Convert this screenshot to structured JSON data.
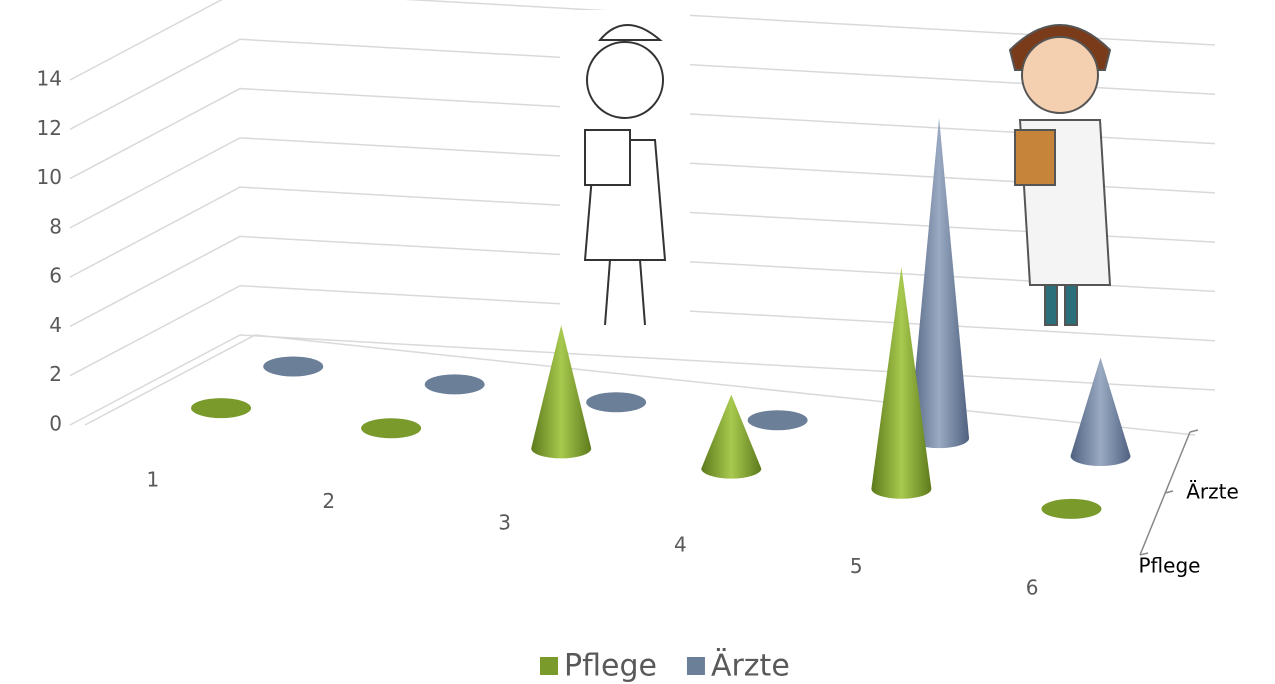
{
  "chart_data": {
    "type": "cone3d",
    "categories": [
      "1",
      "2",
      "3",
      "4",
      "5",
      "6"
    ],
    "series": [
      {
        "name": "Pflege",
        "color": "#7a9a2c",
        "values": [
          0,
          0,
          5,
          3,
          9,
          0
        ]
      },
      {
        "name": "Ärzte",
        "color": "#6b7f99",
        "values": [
          0,
          0,
          0,
          0,
          13,
          4
        ]
      }
    ],
    "ylim": [
      0,
      14
    ],
    "yticks": [
      0,
      2,
      4,
      6,
      8,
      10,
      12,
      14
    ],
    "grid": true,
    "legend": "bottom"
  }
}
